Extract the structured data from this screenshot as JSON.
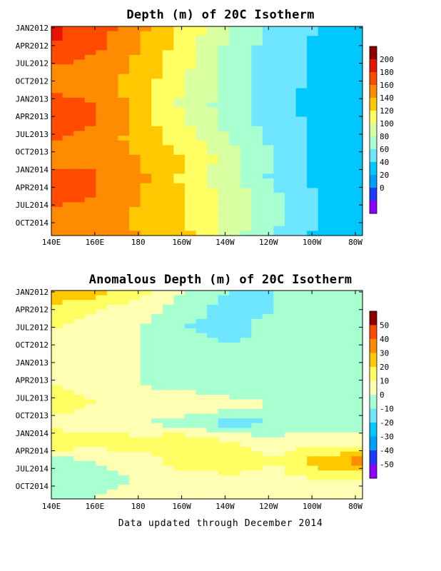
{
  "panels": [
    {
      "title": "Depth (m) of 20C Isotherm",
      "y_ticks": [
        "JAN2012",
        "APR2012",
        "JUL2012",
        "OCT2012",
        "JAN2013",
        "APR2013",
        "JUL2013",
        "OCT2013",
        "JAN2014",
        "APR2014",
        "JUL2014",
        "OCT2014"
      ],
      "x_ticks": [
        "140E",
        "160E",
        "180",
        "160W",
        "140W",
        "120W",
        "100W",
        "80W"
      ],
      "colorbar_labels": [
        "200",
        "180",
        "160",
        "140",
        "120",
        "100",
        "80",
        "60",
        "40",
        "20",
        "0"
      ],
      "colors": [
        "#8b00ff",
        "#1e3cff",
        "#00a0ff",
        "#00c8ff",
        "#6ee6ff",
        "#a8ffd0",
        "#d8ffa0",
        "#ffff64",
        "#ffc800",
        "#ff8c00",
        "#ff4b00",
        "#e61400",
        "#8c0000"
      ]
    },
    {
      "title": "Anomalous Depth (m) of 20C Isotherm",
      "y_ticks": [
        "JAN2012",
        "APR2012",
        "JUL2012",
        "OCT2012",
        "JAN2013",
        "APR2013",
        "JUL2013",
        "OCT2013",
        "JAN2014",
        "APR2014",
        "JUL2014",
        "OCT2014"
      ],
      "x_ticks": [
        "140E",
        "160E",
        "180",
        "160W",
        "140W",
        "120W",
        "100W",
        "80W"
      ],
      "colorbar_labels": [
        "50",
        "40",
        "30",
        "20",
        "10",
        "0",
        "-10",
        "-20",
        "-30",
        "-40",
        "-50"
      ],
      "colors": [
        "#8b00ff",
        "#1e3cff",
        "#00a0ff",
        "#00c8ff",
        "#6ee6ff",
        "#a8ffd0",
        "#ffffb4",
        "#ffff64",
        "#ffc800",
        "#ff8c00",
        "#ff4b00",
        "#8c0000"
      ]
    }
  ],
  "footer": "Data updated through December 2014",
  "chart_data": [
    {
      "type": "heatmap",
      "title": "Depth (m) of 20C Isotherm",
      "x": [
        "140E",
        "160E",
        "180",
        "160W",
        "140W",
        "120W",
        "100W",
        "80W"
      ],
      "y": [
        "JAN2012",
        "APR2012",
        "JUL2012",
        "OCT2012",
        "JAN2013",
        "APR2013",
        "JUL2013",
        "OCT2013",
        "JAN2014",
        "APR2014",
        "JUL2014",
        "OCT2014"
      ],
      "colorbar": [
        0,
        20,
        40,
        60,
        80,
        100,
        120,
        140,
        160,
        180,
        200
      ],
      "values": [
        [
          205,
          190,
          165,
          135,
          100,
          75,
          60,
          50
        ],
        [
          200,
          185,
          160,
          130,
          95,
          70,
          55,
          45
        ],
        [
          180,
          175,
          155,
          125,
          95,
          70,
          55,
          45
        ],
        [
          175,
          170,
          150,
          120,
          95,
          70,
          55,
          45
        ],
        [
          185,
          180,
          150,
          115,
          90,
          70,
          50,
          45
        ],
        [
          190,
          180,
          150,
          120,
          90,
          70,
          55,
          45
        ],
        [
          180,
          175,
          150,
          130,
          100,
          75,
          55,
          45
        ],
        [
          175,
          180,
          160,
          140,
          110,
          80,
          55,
          45
        ],
        [
          185,
          180,
          165,
          135,
          105,
          75,
          55,
          45
        ],
        [
          185,
          180,
          160,
          140,
          115,
          85,
          60,
          45
        ],
        [
          175,
          170,
          155,
          140,
          115,
          85,
          60,
          45
        ],
        [
          175,
          170,
          160,
          145,
          110,
          80,
          55,
          45
        ]
      ]
    },
    {
      "type": "heatmap",
      "title": "Anomalous Depth (m) of 20C Isotherm",
      "x": [
        "140E",
        "160E",
        "180",
        "160W",
        "140W",
        "120W",
        "100W",
        "80W"
      ],
      "y": [
        "JAN2012",
        "APR2012",
        "JUL2012",
        "OCT2012",
        "JAN2013",
        "APR2013",
        "JUL2013",
        "OCT2013",
        "JAN2014",
        "APR2014",
        "JUL2014",
        "OCT2014"
      ],
      "colorbar": [
        -50,
        -40,
        -30,
        -20,
        -10,
        0,
        10,
        20,
        30,
        40,
        50
      ],
      "values": [
        [
          30,
          25,
          15,
          0,
          -10,
          -10,
          -5,
          -5
        ],
        [
          15,
          10,
          5,
          -5,
          -15,
          -10,
          -5,
          -5
        ],
        [
          10,
          5,
          0,
          -10,
          -15,
          -5,
          0,
          -5
        ],
        [
          10,
          5,
          0,
          -5,
          -10,
          -5,
          0,
          0
        ],
        [
          5,
          5,
          0,
          -5,
          -10,
          -5,
          -5,
          -5
        ],
        [
          10,
          5,
          0,
          -5,
          -10,
          -5,
          0,
          0
        ],
        [
          15,
          10,
          5,
          10,
          5,
          0,
          -5,
          0
        ],
        [
          5,
          5,
          0,
          -5,
          -15,
          -10,
          -5,
          -5
        ],
        [
          20,
          15,
          15,
          20,
          10,
          5,
          5,
          5
        ],
        [
          -5,
          0,
          5,
          15,
          20,
          10,
          25,
          35
        ],
        [
          -5,
          -5,
          0,
          5,
          5,
          5,
          10,
          10
        ],
        [
          0,
          0,
          5,
          10,
          5,
          0,
          5,
          5
        ]
      ]
    }
  ]
}
